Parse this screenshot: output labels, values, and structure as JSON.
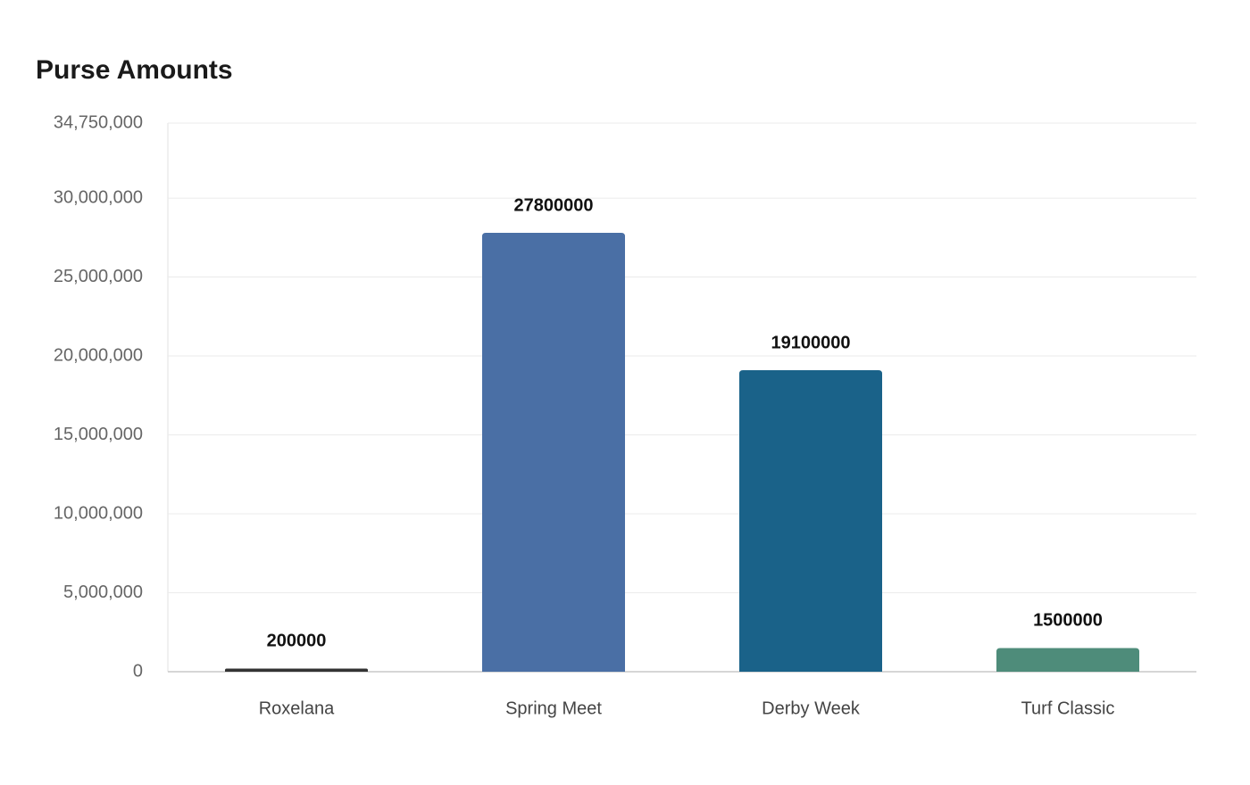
{
  "chart_data": {
    "type": "bar",
    "title": "Purse Amounts",
    "categories": [
      "Roxelana",
      "Spring Meet",
      "Derby Week",
      "Turf Classic"
    ],
    "values": [
      200000,
      27800000,
      19100000,
      1500000
    ],
    "colors": [
      "#333333",
      "#4a6fa5",
      "#1a6289",
      "#4e8c7a"
    ],
    "ylim": [
      0,
      34750000
    ],
    "yticks": [
      0,
      {
        "value": 5000000,
        "label": "5,000,000"
      },
      {
        "value": 10000000,
        "label": "10,000,000"
      },
      {
        "value": 15000000,
        "label": "15,000,000"
      },
      {
        "value": 20000000,
        "label": "20,000,000"
      },
      {
        "value": 25000000,
        "label": "25,000,000"
      },
      {
        "value": 30000000,
        "label": "30,000,000"
      },
      {
        "value": 34750000,
        "label": "34,750,000"
      }
    ],
    "grid": true
  }
}
